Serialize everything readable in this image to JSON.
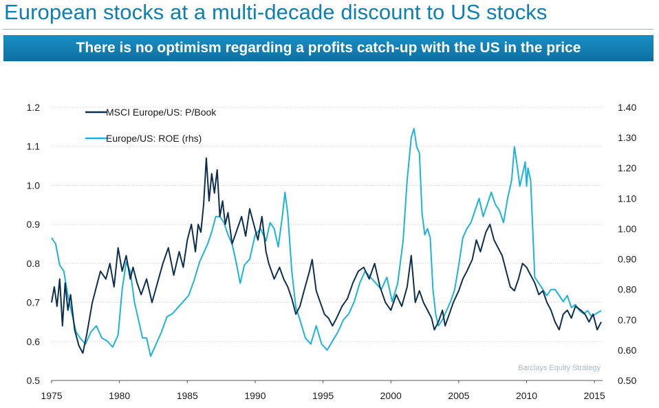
{
  "title": "European stocks at a multi-decade discount to US stocks",
  "banner": "There is no optimism regarding a profits catch-up with the US in the price",
  "source": "Barclays Equity Strategy",
  "colors": {
    "title": "#0d7fb0",
    "banner": "#1283b8",
    "pbook": "#0b2e4f",
    "roe": "#19b3dc"
  },
  "chart_data": {
    "type": "line",
    "x_ticks": [
      "1975",
      "1980",
      "1985",
      "1990",
      "1995",
      "2000",
      "2005",
      "2010",
      "2015"
    ],
    "xlim": [
      1975,
      2015.6
    ],
    "y_left": {
      "ticks": [
        "0.5",
        "0.6",
        "0.7",
        "0.8",
        "0.9",
        "1.0",
        "1.1",
        "1.2"
      ],
      "ylim": [
        0.5,
        1.2
      ]
    },
    "y_right": {
      "ticks": [
        "0.50",
        "0.60",
        "0.70",
        "0.80",
        "0.90",
        "1.00",
        "1.10",
        "1.20",
        "1.30",
        "1.40"
      ],
      "ylim": [
        0.5,
        1.4
      ]
    },
    "series": [
      {
        "name": "MSCI Europe/US: P/Book",
        "axis": "left",
        "x": [
          1975.0,
          1975.2,
          1975.4,
          1975.6,
          1975.8,
          1976.0,
          1976.2,
          1976.4,
          1976.7,
          1977.0,
          1977.3,
          1977.6,
          1978.0,
          1978.3,
          1978.6,
          1979.0,
          1979.3,
          1979.6,
          1979.9,
          1980.2,
          1980.5,
          1980.8,
          1981.0,
          1981.3,
          1981.6,
          1982.0,
          1982.4,
          1982.8,
          1983.2,
          1983.6,
          1984.0,
          1984.4,
          1984.7,
          1985.0,
          1985.3,
          1985.6,
          1985.8,
          1986.0,
          1986.2,
          1986.4,
          1986.6,
          1986.8,
          1987.0,
          1987.2,
          1987.4,
          1987.6,
          1987.8,
          1988.0,
          1988.3,
          1988.6,
          1989.0,
          1989.3,
          1989.6,
          1989.9,
          1990.2,
          1990.5,
          1990.8,
          1991.0,
          1991.4,
          1991.8,
          1992.1,
          1992.4,
          1992.7,
          1993.0,
          1993.3,
          1993.6,
          1994.0,
          1994.2,
          1994.5,
          1994.8,
          1995.1,
          1995.4,
          1995.7,
          1996.0,
          1996.4,
          1996.8,
          1997.2,
          1997.6,
          1998.0,
          1998.4,
          1998.8,
          1999.2,
          1999.6,
          2000.0,
          2000.4,
          2000.8,
          2001.2,
          2001.5,
          2001.8,
          2002.1,
          2002.4,
          2002.7,
          2003.0,
          2003.2,
          2003.5,
          2003.8,
          2004.0,
          2004.3,
          2004.6,
          2005.0,
          2005.3,
          2005.6,
          2006.0,
          2006.3,
          2006.6,
          2007.0,
          2007.3,
          2007.6,
          2007.9,
          2008.2,
          2008.5,
          2008.8,
          2009.1,
          2009.4,
          2009.7,
          2010.0,
          2010.3,
          2010.6,
          2010.9,
          2011.2,
          2011.5,
          2011.8,
          2012.1,
          2012.4,
          2012.7,
          2013.0,
          2013.3,
          2013.6,
          2014.0,
          2014.3,
          2014.6,
          2014.9,
          2015.2,
          2015.5
        ],
        "values": [
          0.7,
          0.74,
          0.69,
          0.76,
          0.64,
          0.75,
          0.68,
          0.72,
          0.63,
          0.59,
          0.57,
          0.62,
          0.7,
          0.74,
          0.78,
          0.76,
          0.8,
          0.74,
          0.84,
          0.78,
          0.82,
          0.76,
          0.79,
          0.75,
          0.72,
          0.76,
          0.7,
          0.75,
          0.8,
          0.84,
          0.77,
          0.83,
          0.79,
          0.86,
          0.9,
          0.83,
          0.9,
          0.88,
          0.95,
          1.07,
          0.96,
          1.03,
          0.98,
          1.04,
          0.92,
          0.96,
          0.9,
          0.93,
          0.85,
          0.88,
          0.92,
          0.87,
          0.94,
          0.9,
          0.86,
          0.92,
          0.83,
          0.8,
          0.76,
          0.79,
          0.76,
          0.74,
          0.71,
          0.67,
          0.69,
          0.73,
          0.78,
          0.81,
          0.73,
          0.7,
          0.67,
          0.66,
          0.64,
          0.66,
          0.69,
          0.71,
          0.75,
          0.78,
          0.79,
          0.76,
          0.8,
          0.74,
          0.7,
          0.68,
          0.72,
          0.69,
          0.74,
          0.82,
          0.7,
          0.73,
          0.7,
          0.68,
          0.66,
          0.63,
          0.65,
          0.68,
          0.64,
          0.67,
          0.7,
          0.73,
          0.76,
          0.78,
          0.81,
          0.86,
          0.83,
          0.88,
          0.9,
          0.86,
          0.84,
          0.82,
          0.78,
          0.74,
          0.73,
          0.76,
          0.8,
          0.79,
          0.77,
          0.75,
          0.72,
          0.73,
          0.7,
          0.68,
          0.65,
          0.63,
          0.67,
          0.68,
          0.66,
          0.69,
          0.68,
          0.67,
          0.65,
          0.67,
          0.63,
          0.65
        ]
      },
      {
        "name": "Europe/US: ROE (rhs)",
        "axis": "right",
        "x": [
          1975.0,
          1975.3,
          1975.6,
          1975.9,
          1976.2,
          1976.5,
          1976.8,
          1977.1,
          1977.5,
          1977.9,
          1978.3,
          1978.7,
          1979.1,
          1979.5,
          1979.9,
          1980.2,
          1980.5,
          1980.8,
          1981.1,
          1981.4,
          1981.7,
          1982.0,
          1982.3,
          1982.7,
          1983.1,
          1983.5,
          1983.9,
          1984.3,
          1984.7,
          1985.1,
          1985.5,
          1985.9,
          1986.2,
          1986.5,
          1986.8,
          1987.1,
          1987.4,
          1987.7,
          1988.0,
          1988.3,
          1988.6,
          1988.9,
          1989.2,
          1989.6,
          1990.0,
          1990.4,
          1990.8,
          1991.1,
          1991.4,
          1991.7,
          1992.0,
          1992.2,
          1992.4,
          1992.7,
          1993.0,
          1993.3,
          1993.7,
          1994.1,
          1994.5,
          1994.9,
          1995.3,
          1995.7,
          1996.1,
          1996.5,
          1996.9,
          1997.3,
          1997.7,
          1998.1,
          1998.5,
          1998.9,
          1999.3,
          1999.7,
          2000.1,
          2000.5,
          2000.9,
          2001.2,
          2001.5,
          2001.7,
          2001.9,
          2002.1,
          2002.3,
          2002.5,
          2002.7,
          2002.9,
          2003.1,
          2003.3,
          2003.5,
          2003.8,
          2004.1,
          2004.4,
          2004.7,
          2005.0,
          2005.3,
          2005.6,
          2005.9,
          2006.2,
          2006.5,
          2006.8,
          2007.1,
          2007.4,
          2007.7,
          2008.0,
          2008.3,
          2008.6,
          2008.9,
          2009.1,
          2009.3,
          2009.5,
          2009.7,
          2009.9,
          2010.0,
          2010.1,
          2010.3,
          2010.6,
          2010.9,
          2011.2,
          2011.5,
          2011.8,
          2012.1,
          2012.4,
          2012.7,
          2013.0,
          2013.3,
          2013.6,
          2013.9,
          2014.2,
          2014.5,
          2014.8,
          2015.1,
          2015.5
        ],
        "values": [
          0.97,
          0.95,
          0.88,
          0.86,
          0.78,
          0.72,
          0.66,
          0.64,
          0.62,
          0.66,
          0.68,
          0.64,
          0.63,
          0.61,
          0.65,
          0.8,
          0.89,
          0.86,
          0.76,
          0.7,
          0.64,
          0.64,
          0.58,
          0.62,
          0.66,
          0.71,
          0.72,
          0.74,
          0.76,
          0.78,
          0.83,
          0.89,
          0.92,
          0.95,
          0.99,
          1.04,
          1.04,
          1.02,
          0.98,
          0.95,
          0.89,
          0.82,
          0.88,
          0.9,
          0.98,
          1.0,
          0.96,
          1.02,
          1.0,
          0.94,
          1.04,
          1.12,
          1.05,
          0.86,
          0.74,
          0.7,
          0.64,
          0.62,
          0.68,
          0.62,
          0.6,
          0.63,
          0.66,
          0.7,
          0.72,
          0.76,
          0.82,
          0.86,
          0.84,
          0.82,
          0.8,
          0.84,
          0.76,
          0.82,
          0.96,
          1.16,
          1.3,
          1.33,
          1.27,
          1.25,
          1.05,
          0.98,
          1.0,
          0.97,
          0.8,
          0.72,
          0.68,
          0.7,
          0.73,
          0.76,
          0.8,
          0.88,
          0.97,
          1.0,
          1.02,
          1.06,
          1.1,
          1.04,
          1.08,
          1.12,
          1.08,
          1.06,
          1.02,
          1.1,
          1.16,
          1.27,
          1.21,
          1.14,
          1.18,
          1.22,
          1.14,
          1.2,
          1.16,
          0.84,
          0.82,
          0.8,
          0.78,
          0.8,
          0.8,
          0.78,
          0.76,
          0.78,
          0.74,
          0.75,
          0.73,
          0.72,
          0.73,
          0.71,
          0.72,
          0.73
        ]
      }
    ]
  }
}
